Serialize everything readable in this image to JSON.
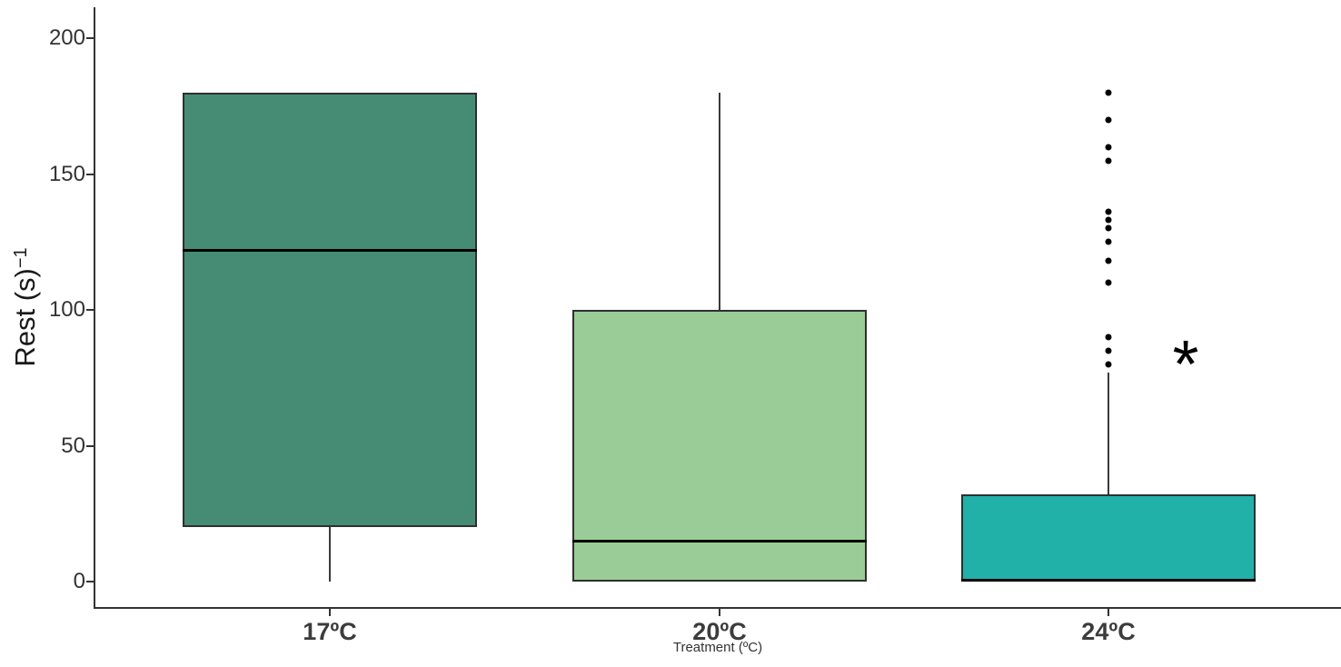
{
  "figure": {
    "background": "#ffffff",
    "y_axis": {
      "label_base": "Rest (s)",
      "label_exponent": "−1",
      "tick_labels": [
        "0",
        "50",
        "100",
        "150",
        "200"
      ]
    },
    "x_axis": {
      "title": "Treatment (ºC)",
      "labels": [
        "17ºC",
        "20ºC",
        "24ºC"
      ]
    },
    "annotation": {
      "symbol": "*",
      "meaning": "significance-marker"
    }
  },
  "chart_data": {
    "type": "box",
    "title": "",
    "xlabel": "Treatment (ºC)",
    "ylabel": "Rest (s)^−1",
    "ylim": [
      0,
      210
    ],
    "yticks": [
      0,
      50,
      100,
      150,
      200
    ],
    "grid": false,
    "legend": "none",
    "categories": [
      "17ºC",
      "20ºC",
      "24ºC"
    ],
    "series": [
      {
        "category": "17ºC",
        "fill": "#468B74",
        "whisker_low": 0,
        "q1": 20,
        "median": 122,
        "q3": 180,
        "whisker_high": 180,
        "outliers": [],
        "annotation": ""
      },
      {
        "category": "20ºC",
        "fill": "#9ACC97",
        "whisker_low": 0,
        "q1": 0,
        "median": 15,
        "q3": 100,
        "whisker_high": 180,
        "outliers": [],
        "annotation": ""
      },
      {
        "category": "24ºC",
        "fill": "#21B1A9",
        "whisker_low": 0,
        "q1": 0,
        "median": 0,
        "q3": 32,
        "whisker_high": 77,
        "outliers": [
          180,
          170,
          160,
          155,
          136,
          133,
          130,
          125,
          118,
          110,
          90,
          85,
          80
        ],
        "annotation": "*",
        "annotation_y": 85
      }
    ],
    "colors": {
      "axis": "#333333",
      "box_border": "#2f2f2f",
      "median": "#000000",
      "outlier": "#000000"
    }
  }
}
